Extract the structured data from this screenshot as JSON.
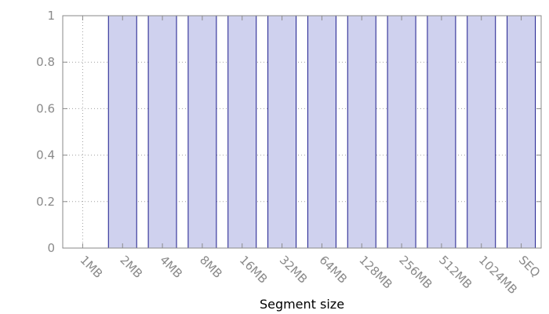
{
  "chart_data": {
    "type": "bar",
    "categories": [
      "1MB",
      "2MB",
      "4MB",
      "8MB",
      "16MB",
      "32MB",
      "64MB",
      "128MB",
      "256MB",
      "512MB",
      "1024MB",
      "SEQ"
    ],
    "values": [
      0,
      1,
      1,
      1,
      1,
      1,
      1,
      1,
      1,
      1,
      1,
      1
    ],
    "xlabel": "Segment size",
    "ylabel": "",
    "ylim": [
      0,
      1
    ],
    "yticks": [
      0,
      0.2,
      0.4,
      0.6,
      0.8,
      1
    ],
    "ytick_labels": [
      "0",
      "0.2",
      "0.4",
      "0.6",
      "0.8",
      "1"
    ],
    "grid": true,
    "legend": "none",
    "colors": {
      "bar_fill": "#cfd1ee",
      "bar_stroke": "#1a1a8c",
      "grid": "#a0a0a0",
      "axis": "#8a8a8a"
    }
  }
}
